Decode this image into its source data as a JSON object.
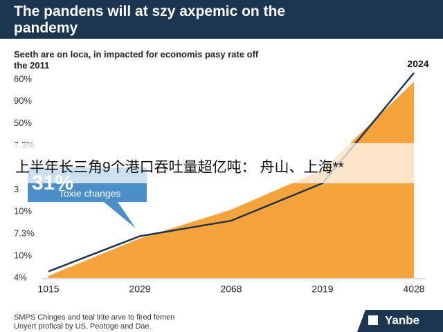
{
  "chart_data": {
    "type": "area",
    "title": "The pandens will at szy axpemic on the pandemy",
    "subtitle": "Seeth are on loca, in impacted for economis pasy rate off the 2011",
    "categories": [
      "1015",
      "2029",
      "2068",
      "2019",
      "4028"
    ],
    "y_categories": [
      "4%",
      "10%",
      "7.3%",
      "10%",
      "3",
      null,
      "7.3%",
      "50%",
      "90%",
      "60%"
    ],
    "ylim": [
      0,
      9.5
    ],
    "series": [
      {
        "style": "area",
        "color": "#f5a33a",
        "values": [
          0.1,
          1.8,
          3.1,
          4.9,
          8.9
        ]
      },
      {
        "style": "line",
        "color": "#1c3550",
        "values": [
          0.3,
          1.9,
          2.6,
          4.3,
          9.3
        ]
      }
    ],
    "end_label": "2024",
    "callout": {
      "big": "31%",
      "text": "Toxie changes"
    },
    "overlay_caption": "上半年长三角9个港口吞吐量超亿吨： 舟山、上海**",
    "footer": [
      "SMPS Chinges and teal lrite arve to fired femen",
      "Unyert profical by US, Peotoge and Dae."
    ],
    "logo": "Yanbe"
  }
}
